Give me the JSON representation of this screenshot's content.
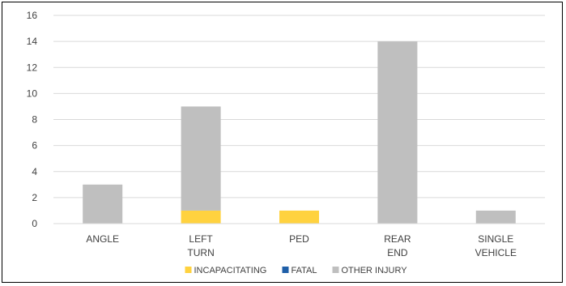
{
  "chart_data": {
    "type": "bar",
    "stacked": true,
    "title": "",
    "xlabel": "",
    "ylabel": "",
    "categories": [
      [
        "ANGLE"
      ],
      [
        "LEFT",
        "TURN"
      ],
      [
        "PED"
      ],
      [
        "REAR",
        "END"
      ],
      [
        "SINGLE",
        "VEHICLE"
      ]
    ],
    "series": [
      {
        "name": "INCAPACITATING",
        "color": "#FFD23F",
        "values": [
          0,
          1,
          1,
          0,
          0
        ]
      },
      {
        "name": "FATAL",
        "color": "#1F5FA8",
        "values": [
          0,
          0,
          0,
          0,
          0
        ]
      },
      {
        "name": "OTHER INJURY",
        "color": "#BFBFBF",
        "values": [
          3,
          8,
          0,
          14,
          1
        ]
      }
    ],
    "ylim": [
      0,
      16
    ],
    "yticks": [
      0,
      2,
      4,
      6,
      8,
      10,
      12,
      14,
      16
    ],
    "grid": true,
    "legend": "bottom"
  }
}
